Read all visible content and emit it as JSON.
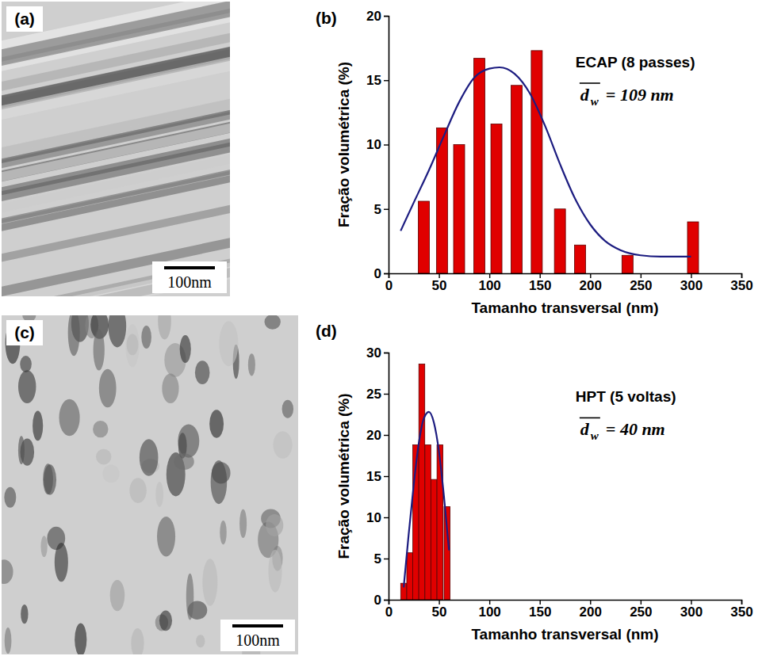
{
  "images": [
    {
      "panel_label": "(a)",
      "scale_bar": "100nm"
    },
    {
      "panel_label": "(c)",
      "scale_bar": "100nm"
    }
  ],
  "chart_data": [
    {
      "type": "bar",
      "panel_label": "(b)",
      "title": "ECAP (8 passes)",
      "annotations": [
        {
          "symbol": "d",
          "subscript": "w",
          "text": "= 109 nm"
        }
      ],
      "x_label": "Tamanho transversal (nm)",
      "y_label": "Fração volumétrica (%)",
      "xlim": [
        0,
        350
      ],
      "xticks": [
        0,
        50,
        100,
        150,
        200,
        250,
        300,
        350
      ],
      "ylim": [
        0,
        20
      ],
      "yticks": [
        0,
        5,
        10,
        15,
        20
      ],
      "series": [
        {
          "type": "bar",
          "color": "#e00000",
          "x": [
            35,
            53,
            70,
            90,
            107,
            127,
            147,
            170,
            190,
            237,
            302
          ],
          "values": [
            5.6,
            11.3,
            10,
            16.7,
            11.6,
            14.6,
            17.3,
            5,
            2.2,
            1.4,
            4
          ]
        },
        {
          "type": "line",
          "color": "#1c1c80",
          "x": [
            12,
            25,
            40,
            55,
            70,
            85,
            100,
            110,
            125,
            140,
            155,
            170,
            185,
            200,
            215,
            230,
            250,
            270,
            300
          ],
          "values": [
            3.3,
            5.5,
            8,
            10.7,
            13.3,
            15.2,
            15.9,
            16,
            15.5,
            14,
            11.5,
            8.5,
            5.8,
            3.8,
            2.5,
            1.8,
            1.4,
            1.3,
            1.3
          ]
        }
      ]
    },
    {
      "type": "bar",
      "panel_label": "(d)",
      "title": "HPT (5 voltas)",
      "annotations": [
        {
          "symbol": "d",
          "subscript": "w",
          "text": "= 40 nm"
        }
      ],
      "x_label": "Tamanho transversal (nm)",
      "y_label": "Fração volumétrica (%)",
      "xlim": [
        0,
        350
      ],
      "xticks": [
        0,
        50,
        100,
        150,
        200,
        250,
        300,
        350
      ],
      "ylim": [
        0,
        30
      ],
      "yticks": [
        0,
        5,
        10,
        15,
        20,
        25,
        30
      ],
      "series": [
        {
          "type": "bar",
          "color": "#e00000",
          "x": [
            15,
            21,
            27,
            33,
            39,
            45,
            51,
            58
          ],
          "values": [
            2,
            5.7,
            18.8,
            28.6,
            18.8,
            14.6,
            18.8,
            11.3
          ]
        },
        {
          "type": "line",
          "color": "#1c1c80",
          "x": [
            15,
            20,
            25,
            30,
            35,
            40,
            45,
            50,
            55,
            60
          ],
          "values": [
            1.5,
            8,
            14,
            19,
            22,
            22.8,
            21.5,
            18,
            12.5,
            6
          ]
        }
      ]
    }
  ]
}
